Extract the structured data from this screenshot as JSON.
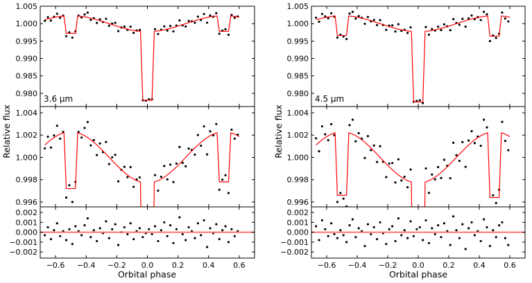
{
  "chart_data": [
    {
      "type": "scatter",
      "channel_label": "3.6 µm",
      "xlabel": "Orbital phase",
      "ylabel": "Relative flux",
      "xlim": [
        -0.7,
        0.7
      ],
      "xticks": [
        "−0.6",
        "−0.4",
        "−0.2",
        "0.0",
        "0.2",
        "0.4",
        "0.6"
      ],
      "panels": [
        {
          "role": "flux",
          "ylim": [
            0.9762,
            1.005
          ],
          "yticks": [
            "1.005",
            "1.000",
            "0.995",
            "0.990",
            "0.985",
            "0.980"
          ]
        },
        {
          "role": "flux-zoom",
          "ylim": [
            0.99556,
            1.00456
          ],
          "yticks": [
            "1.004",
            "1.002",
            "1.000",
            "0.998",
            "0.996"
          ]
        },
        {
          "role": "residual",
          "ylim": [
            -0.00262,
            0.00256
          ],
          "yticks": [
            "0.002",
            "0.001",
            "0.000",
            "−0.001",
            "−0.002"
          ]
        }
      ],
      "colors": {
        "points": "#000000",
        "model": "#ff0000",
        "residual_zero_line": "#ff7070"
      },
      "phase": [
        -0.67,
        -0.65,
        -0.63,
        -0.61,
        -0.59,
        -0.57,
        -0.55,
        -0.53,
        -0.51,
        -0.49,
        -0.47,
        -0.45,
        -0.43,
        -0.41,
        -0.39,
        -0.37,
        -0.35,
        -0.33,
        -0.31,
        -0.29,
        -0.27,
        -0.25,
        -0.23,
        -0.21,
        -0.19,
        -0.17,
        -0.15,
        -0.13,
        -0.11,
        -0.09,
        -0.07,
        -0.05,
        -0.03,
        -0.01,
        0.01,
        0.03,
        0.05,
        0.07,
        0.09,
        0.11,
        0.13,
        0.15,
        0.17,
        0.19,
        0.21,
        0.23,
        0.25,
        0.27,
        0.29,
        0.31,
        0.33,
        0.35,
        0.37,
        0.39,
        0.41,
        0.43,
        0.45,
        0.47,
        0.49,
        0.51,
        0.53,
        0.55,
        0.57,
        0.59
      ],
      "flux": [
        1.00081,
        1.00185,
        1.00088,
        1.00197,
        1.00284,
        1.00168,
        1.00229,
        0.9964,
        0.9975,
        0.996,
        0.9978,
        1.00229,
        1.00178,
        1.00264,
        1.00317,
        1.00108,
        1.00155,
        1.00021,
        1.00125,
        1.00047,
        1.00139,
        0.9994,
        1.00001,
        1.00023,
        0.99785,
        0.99889,
        0.99915,
        0.99823,
        0.99913,
        0.99736,
        0.99802,
        0.99821,
        0.978,
        0.9779,
        0.9783,
        0.9783,
        0.99841,
        0.99702,
        0.99826,
        0.99923,
        0.99803,
        0.99935,
        0.99779,
        0.99945,
        1.00093,
        0.99951,
        0.9992,
        1.00079,
        1.00067,
        1.00025,
        1.00201,
        1.00105,
        1.00278,
        1.00027,
        1.00234,
        1.00198,
        1.00299,
        0.9971,
        0.998,
        0.9984,
        0.9968,
        1.00249,
        1.00168,
        1.00204
      ],
      "residual": [
        -0.0003,
        0.0005,
        -0.0007,
        0.0002,
        0.0009,
        -0.0004,
        0.0001,
        -0.0008,
        0.0003,
        -0.0012,
        0.0006,
        0.0001,
        -0.0003,
        0.0007,
        0.0014,
        -0.0005,
        0.0002,
        -0.0009,
        0.0004,
        -0.0001,
        0.0011,
        -0.0006,
        0.0003,
        0.0008,
        -0.0013,
        0.0,
        0.0005,
        -0.0002,
        0.0009,
        -0.0007,
        0.0001,
        0.0004,
        -0.0005,
        -0.0001,
        0.0003,
        -0.0002,
        0.0006,
        -0.0009,
        0.0002,
        0.001,
        -0.0004,
        0.0007,
        -0.0011,
        0.0003,
        0.0015,
        -0.0002,
        -0.0008,
        0.0005,
        0.0001,
        -0.0006,
        0.0009,
        -0.0003,
        0.0012,
        -0.0015,
        0.0004,
        -0.0001,
        0.0008,
        -0.0007,
        0.0002,
        0.0006,
        -0.001,
        0.0003,
        -0.0004,
        0.0001
      ],
      "model": {
        "phase_range": [
          -0.67,
          0.6
        ],
        "phase_curve_amplitude": 0.0023,
        "transit_bottom": 0.978,
        "transit_half_duration": 0.045,
        "transit_flat_half_duration": 0.03,
        "eclipse_levels": [
          0.9972,
          0.9978
        ],
        "eclipse_half_duration": 0.045,
        "eclipse_flat_half_duration": 0.03
      }
    },
    {
      "type": "scatter",
      "channel_label": "4.5 µm",
      "xlabel": "Orbital phase",
      "ylabel": "Relative flux",
      "xlim": [
        -0.7,
        0.7
      ],
      "xticks": [
        "−0.6",
        "−0.4",
        "−0.2",
        "0.0",
        "0.2",
        "0.4",
        "0.6"
      ],
      "panels": [
        {
          "role": "flux",
          "ylim": [
            0.9762,
            1.005
          ],
          "yticks": [
            "1.005",
            "1.000",
            "0.995",
            "0.990",
            "0.985",
            "0.980"
          ]
        },
        {
          "role": "flux-zoom",
          "ylim": [
            0.99556,
            1.00456
          ],
          "yticks": [
            "1.004",
            "1.002",
            "1.000",
            "0.998",
            "0.996"
          ]
        },
        {
          "role": "residual",
          "ylim": [
            -0.00262,
            0.00256
          ],
          "yticks": [
            "0.002",
            "0.001",
            "0.000",
            "−0.001",
            "−0.002"
          ]
        }
      ],
      "colors": {
        "points": "#000000",
        "model": "#ff0000",
        "residual_zero_line": "#ff7070"
      },
      "phase": [
        -0.67,
        -0.65,
        -0.63,
        -0.61,
        -0.59,
        -0.57,
        -0.55,
        -0.53,
        -0.51,
        -0.49,
        -0.47,
        -0.45,
        -0.43,
        -0.41,
        -0.39,
        -0.37,
        -0.35,
        -0.33,
        -0.31,
        -0.29,
        -0.27,
        -0.25,
        -0.23,
        -0.21,
        -0.19,
        -0.17,
        -0.15,
        -0.13,
        -0.11,
        -0.09,
        -0.07,
        -0.05,
        -0.03,
        -0.01,
        0.01,
        0.03,
        0.05,
        0.07,
        0.09,
        0.11,
        0.13,
        0.15,
        0.17,
        0.19,
        0.21,
        0.23,
        0.25,
        0.27,
        0.29,
        0.31,
        0.33,
        0.35,
        0.37,
        0.39,
        0.41,
        0.43,
        0.45,
        0.47,
        0.49,
        0.51,
        0.53,
        0.55,
        0.57,
        0.59
      ],
      "flux": [
        1.00171,
        1.00055,
        1.00278,
        1.00207,
        1.00154,
        1.00298,
        1.00199,
        0.996,
        0.9968,
        0.9963,
        0.9956,
        1.00289,
        1.00338,
        1.00144,
        1.00217,
        1.00168,
        0.99995,
        1.00191,
        1.00065,
        1.00107,
        0.99959,
        1.001,
        0.99961,
        0.99823,
        0.99945,
        0.99949,
        0.99775,
        0.99983,
        0.99793,
        0.99826,
        0.99732,
        0.99891,
        0.9776,
        0.9778,
        0.978,
        0.9772,
        0.99901,
        0.99682,
        0.99846,
        0.99803,
        0.99913,
        0.99815,
        0.99979,
        0.99925,
        0.99813,
        1.00131,
        1.0002,
        0.99969,
        1.00137,
        0.99915,
        1.00151,
        1.00235,
        1.00128,
        1.00187,
        1.00104,
        1.00338,
        1.00269,
        0.995,
        0.9966,
        0.9959,
        0.9971,
        1.00319,
        1.00148,
        1.00064
      ],
      "residual": [
        0.0006,
        -0.0008,
        0.0012,
        0.0003,
        -0.0004,
        0.0009,
        -0.0002,
        -0.0006,
        0.0002,
        -0.0003,
        -0.001,
        0.0007,
        0.0013,
        -0.0005,
        0.0004,
        0.0001,
        -0.0014,
        0.0008,
        -0.0002,
        0.0005,
        -0.0007,
        0.001,
        -0.0001,
        -0.0012,
        0.0003,
        0.0006,
        -0.0009,
        0.0014,
        -0.0003,
        0.0002,
        -0.0006,
        0.0011,
        -0.0004,
        0.0003,
        0.0005,
        -0.0008,
        0.0012,
        -0.0011,
        0.0004,
        -0.0002,
        0.0007,
        -0.0005,
        0.0009,
        0.0001,
        -0.0013,
        0.0016,
        0.0002,
        -0.0006,
        0.0008,
        -0.0017,
        0.0004,
        0.001,
        -0.0003,
        0.0001,
        -0.0009,
        0.0013,
        0.0005,
        -0.0014,
        0.0002,
        -0.0005,
        0.0007,
        0.001,
        -0.0006,
        -0.0013
      ],
      "model": {
        "phase_range": [
          -0.67,
          0.6
        ],
        "phase_curve_amplitude": 0.0023,
        "transit_bottom": 0.9775,
        "transit_half_duration": 0.045,
        "transit_flat_half_duration": 0.03,
        "eclipse_levels": [
          0.9966,
          0.9964
        ],
        "eclipse_half_duration": 0.045,
        "eclipse_flat_half_duration": 0.03
      }
    }
  ]
}
